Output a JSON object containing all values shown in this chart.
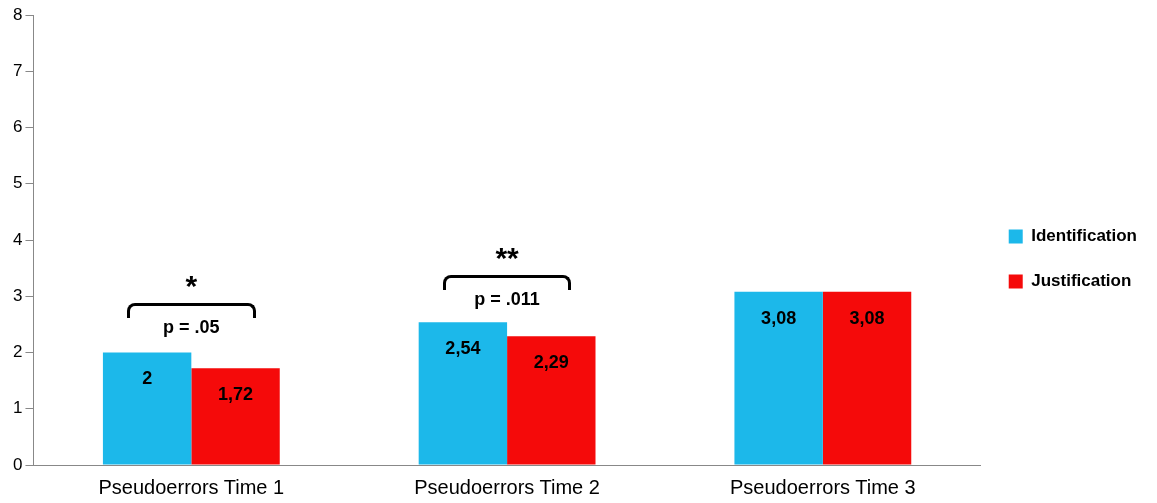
{
  "chart_data": {
    "type": "bar",
    "categories": [
      "Pseudoerrors Time 1",
      "Pseudoerrors Time 2",
      "Pseudoerrors Time 3"
    ],
    "series": [
      {
        "name": "Identification",
        "color": "#1cb8ea",
        "values": [
          2,
          2.54,
          3.08
        ],
        "value_labels": [
          "2",
          "2,54",
          "3,08"
        ]
      },
      {
        "name": "Justification",
        "color": "#f50a0a",
        "values": [
          1.72,
          2.29,
          3.08
        ],
        "value_labels": [
          "1,72",
          "2,29",
          "3,08"
        ]
      }
    ],
    "ylim": [
      0,
      8
    ],
    "yticks": [
      0,
      1,
      2,
      3,
      4,
      5,
      6,
      7,
      8
    ],
    "grid": false,
    "legend": "right",
    "annotations": [
      "*",
      "p = .05",
      "**",
      "p = .011"
    ]
  }
}
